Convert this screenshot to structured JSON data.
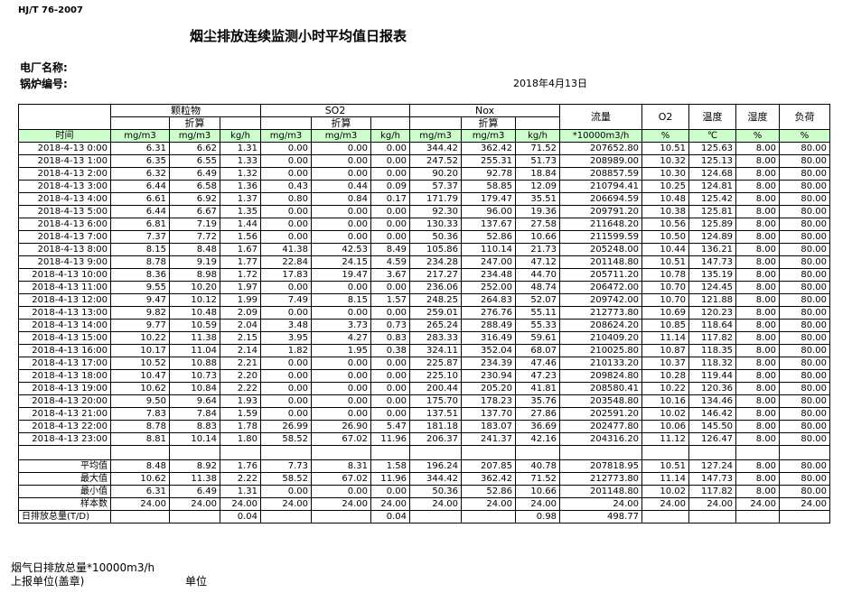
{
  "header": {
    "standard": "HJ/T  76-2007",
    "title": "烟尘排放连续监测小时平均值日报表",
    "plant_label": "电厂名称:",
    "boiler_label": "锅炉编号:",
    "date": "2018年4月13日"
  },
  "table": {
    "groups": [
      "颗粒物",
      "SO2",
      "Nox"
    ],
    "converted": "折算",
    "single_headers": [
      "流量",
      "O2",
      "温度",
      "湿度",
      "负荷"
    ],
    "units": [
      "时间",
      "mg/m3",
      "mg/m3",
      "kg/h",
      "mg/m3",
      "mg/m3",
      "kg/h",
      "mg/m3",
      "mg/m3",
      "kg/h",
      "*10000m3/h",
      "%",
      "℃",
      "%",
      "%"
    ],
    "rows": [
      [
        "2018-4-13 0:00",
        "6.31",
        "6.62",
        "1.31",
        "0.00",
        "0.00",
        "0.00",
        "344.42",
        "362.42",
        "71.52",
        "207652.80",
        "10.51",
        "125.63",
        "8.00",
        "80.00"
      ],
      [
        "2018-4-13 1:00",
        "6.35",
        "6.55",
        "1.33",
        "0.00",
        "0.00",
        "0.00",
        "247.52",
        "255.31",
        "51.73",
        "208989.00",
        "10.32",
        "125.13",
        "8.00",
        "80.00"
      ],
      [
        "2018-4-13 2:00",
        "6.32",
        "6.49",
        "1.32",
        "0.00",
        "0.00",
        "0.00",
        "90.20",
        "92.78",
        "18.84",
        "208857.59",
        "10.30",
        "124.68",
        "8.00",
        "80.00"
      ],
      [
        "2018-4-13 3:00",
        "6.44",
        "6.58",
        "1.36",
        "0.43",
        "0.44",
        "0.09",
        "57.37",
        "58.85",
        "12.09",
        "210794.41",
        "10.25",
        "124.81",
        "8.00",
        "80.00"
      ],
      [
        "2018-4-13 4:00",
        "6.61",
        "6.92",
        "1.37",
        "0.80",
        "0.84",
        "0.17",
        "171.79",
        "179.47",
        "35.51",
        "206694.59",
        "10.48",
        "125.42",
        "8.00",
        "80.00"
      ],
      [
        "2018-4-13 5:00",
        "6.44",
        "6.67",
        "1.35",
        "0.00",
        "0.00",
        "0.00",
        "92.30",
        "96.00",
        "19.36",
        "209791.20",
        "10.38",
        "125.81",
        "8.00",
        "80.00"
      ],
      [
        "2018-4-13 6:00",
        "6.81",
        "7.19",
        "1.44",
        "0.00",
        "0.00",
        "0.00",
        "130.33",
        "137.67",
        "27.58",
        "211648.20",
        "10.56",
        "125.89",
        "8.00",
        "80.00"
      ],
      [
        "2018-4-13 7:00",
        "7.37",
        "7.72",
        "1.56",
        "0.00",
        "0.00",
        "0.00",
        "50.36",
        "52.86",
        "10.66",
        "211599.59",
        "10.50",
        "124.89",
        "8.00",
        "80.00"
      ],
      [
        "2018-4-13 8:00",
        "8.15",
        "8.48",
        "1.67",
        "41.38",
        "42.53",
        "8.49",
        "105.86",
        "110.14",
        "21.73",
        "205248.00",
        "10.44",
        "136.21",
        "8.00",
        "80.00"
      ],
      [
        "2018-4-13 9:00",
        "8.78",
        "9.19",
        "1.77",
        "22.84",
        "24.15",
        "4.59",
        "234.28",
        "247.00",
        "47.12",
        "201148.80",
        "10.51",
        "147.73",
        "8.00",
        "80.00"
      ],
      [
        "2018-4-13 10:00",
        "8.36",
        "8.98",
        "1.72",
        "17.83",
        "19.47",
        "3.67",
        "217.27",
        "234.48",
        "44.70",
        "205711.20",
        "10.78",
        "135.19",
        "8.00",
        "80.00"
      ],
      [
        "2018-4-13 11:00",
        "9.55",
        "10.20",
        "1.97",
        "0.00",
        "0.00",
        "0.00",
        "236.06",
        "252.00",
        "48.74",
        "206472.00",
        "10.70",
        "124.45",
        "8.00",
        "80.00"
      ],
      [
        "2018-4-13 12:00",
        "9.47",
        "10.12",
        "1.99",
        "7.49",
        "8.15",
        "1.57",
        "248.25",
        "264.83",
        "52.07",
        "209742.00",
        "10.70",
        "121.88",
        "8.00",
        "80.00"
      ],
      [
        "2018-4-13 13:00",
        "9.82",
        "10.48",
        "2.09",
        "0.00",
        "0.00",
        "0.00",
        "259.01",
        "276.76",
        "55.11",
        "212773.80",
        "10.69",
        "120.23",
        "8.00",
        "80.00"
      ],
      [
        "2018-4-13 14:00",
        "9.77",
        "10.59",
        "2.04",
        "3.48",
        "3.73",
        "0.73",
        "265.24",
        "288.49",
        "55.33",
        "208624.20",
        "10.85",
        "118.64",
        "8.00",
        "80.00"
      ],
      [
        "2018-4-13 15:00",
        "10.22",
        "11.38",
        "2.15",
        "3.95",
        "4.27",
        "0.83",
        "283.33",
        "316.49",
        "59.61",
        "210409.20",
        "11.14",
        "117.82",
        "8.00",
        "80.00"
      ],
      [
        "2018-4-13 16:00",
        "10.17",
        "11.04",
        "2.14",
        "1.82",
        "1.95",
        "0.38",
        "324.11",
        "352.04",
        "68.07",
        "210025.80",
        "10.87",
        "118.35",
        "8.00",
        "80.00"
      ],
      [
        "2018-4-13 17:00",
        "10.52",
        "10.88",
        "2.21",
        "0.00",
        "0.00",
        "0.00",
        "225.87",
        "234.39",
        "47.46",
        "210133.20",
        "10.37",
        "118.32",
        "8.00",
        "80.00"
      ],
      [
        "2018-4-13 18:00",
        "10.47",
        "10.73",
        "2.20",
        "0.00",
        "0.00",
        "0.00",
        "225.10",
        "230.94",
        "47.23",
        "209824.80",
        "10.28",
        "119.44",
        "8.00",
        "80.00"
      ],
      [
        "2018-4-13 19:00",
        "10.62",
        "10.84",
        "2.22",
        "0.00",
        "0.00",
        "0.00",
        "200.44",
        "205.20",
        "41.81",
        "208580.41",
        "10.22",
        "120.36",
        "8.00",
        "80.00"
      ],
      [
        "2018-4-13 20:00",
        "9.50",
        "9.64",
        "1.93",
        "0.00",
        "0.00",
        "0.00",
        "175.70",
        "178.23",
        "35.76",
        "203548.80",
        "10.16",
        "134.46",
        "8.00",
        "80.00"
      ],
      [
        "2018-4-13 21:00",
        "7.83",
        "7.84",
        "1.59",
        "0.00",
        "0.00",
        "0.00",
        "137.51",
        "137.70",
        "27.86",
        "202591.20",
        "10.02",
        "146.42",
        "8.00",
        "80.00"
      ],
      [
        "2018-4-13 22:00",
        "8.78",
        "8.83",
        "1.78",
        "26.99",
        "26.90",
        "5.47",
        "181.18",
        "183.07",
        "36.69",
        "202477.80",
        "10.06",
        "145.50",
        "8.00",
        "80.00"
      ],
      [
        "2018-4-13 23:00",
        "8.81",
        "10.14",
        "1.80",
        "58.52",
        "67.02",
        "11.96",
        "206.37",
        "241.37",
        "42.16",
        "204316.20",
        "11.12",
        "126.47",
        "8.00",
        "80.00"
      ]
    ],
    "summary": [
      [
        "平均值",
        "8.48",
        "8.92",
        "1.76",
        "7.73",
        "8.31",
        "1.58",
        "196.24",
        "207.85",
        "40.78",
        "207818.95",
        "10.51",
        "127.24",
        "8.00",
        "80.00"
      ],
      [
        "最大值",
        "10.62",
        "11.38",
        "2.22",
        "58.52",
        "67.02",
        "11.96",
        "344.42",
        "362.42",
        "71.52",
        "212773.80",
        "11.14",
        "147.73",
        "8.00",
        "80.00"
      ],
      [
        "最小值",
        "6.31",
        "6.49",
        "1.31",
        "0.00",
        "0.00",
        "0.00",
        "50.36",
        "52.86",
        "10.66",
        "201148.80",
        "10.02",
        "117.82",
        "8.00",
        "80.00"
      ],
      [
        "样本数",
        "24.00",
        "24.00",
        "24.00",
        "24.00",
        "24.00",
        "24.00",
        "24.00",
        "24.00",
        "24.00",
        "24.00",
        "24.00",
        "24.00",
        "24.00",
        "24.00"
      ]
    ],
    "total": {
      "label": "日排放总量(T/D)",
      "pm_kgh": "0.04",
      "so2_kgh": "0.04",
      "nox_kgh": "0.98",
      "flow": "498.77"
    }
  },
  "footer": {
    "flow_total_label": "烟气日排放总量*10000m3/h",
    "unit_label": "上报单位(盖章)",
    "unit": "单位"
  }
}
